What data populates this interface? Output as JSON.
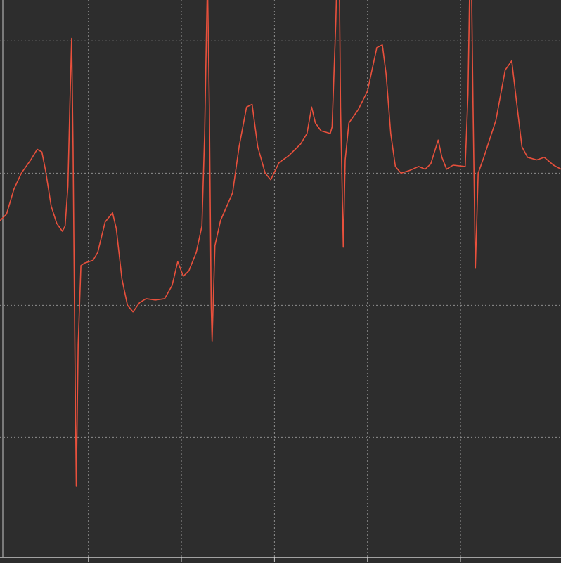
{
  "theme": {
    "background": "#2d2d2d",
    "grid": "#8f8f8f",
    "trace": "#e8503c",
    "axis": "#c8c8c8"
  },
  "chart_data": {
    "type": "line",
    "title": "",
    "xlabel": "",
    "ylabel": "",
    "grid": true,
    "legend": "none",
    "x_gridlines": [
      1,
      2,
      3,
      4,
      5
    ],
    "y_gridlines": [
      -2,
      -1,
      0,
      1
    ],
    "xlim": [
      0.05,
      6.08
    ],
    "ylim": [
      -2.95,
      1.31
    ],
    "series": [
      {
        "name": "",
        "points": [
          [
            0.05,
            -0.36
          ],
          [
            0.12,
            -0.31
          ],
          [
            0.2,
            -0.12
          ],
          [
            0.28,
            0.0
          ],
          [
            0.38,
            0.1
          ],
          [
            0.45,
            0.18
          ],
          [
            0.5,
            0.16
          ],
          [
            0.54,
            0.02
          ],
          [
            0.6,
            -0.25
          ],
          [
            0.66,
            -0.38
          ],
          [
            0.72,
            -0.44
          ],
          [
            0.75,
            -0.4
          ],
          [
            0.78,
            -0.1
          ],
          [
            0.8,
            0.5
          ],
          [
            0.82,
            1.02
          ],
          [
            0.835,
            0.2
          ],
          [
            0.85,
            -1.0
          ],
          [
            0.87,
            -2.37
          ],
          [
            0.89,
            -1.3
          ],
          [
            0.92,
            -0.7
          ],
          [
            0.96,
            -0.68
          ],
          [
            1.05,
            -0.66
          ],
          [
            1.1,
            -0.6
          ],
          [
            1.18,
            -0.37
          ],
          [
            1.26,
            -0.3
          ],
          [
            1.3,
            -0.42
          ],
          [
            1.36,
            -0.8
          ],
          [
            1.42,
            -1.0
          ],
          [
            1.48,
            -1.05
          ],
          [
            1.55,
            -0.98
          ],
          [
            1.62,
            -0.95
          ],
          [
            1.72,
            -0.96
          ],
          [
            1.82,
            -0.95
          ],
          [
            1.9,
            -0.85
          ],
          [
            1.96,
            -0.67
          ],
          [
            2.02,
            -0.78
          ],
          [
            2.08,
            -0.74
          ],
          [
            2.16,
            -0.6
          ],
          [
            2.22,
            -0.4
          ],
          [
            2.25,
            0.3
          ],
          [
            2.28,
            1.48
          ],
          [
            2.3,
            0.5
          ],
          [
            2.32,
            -1.0
          ],
          [
            2.33,
            -1.27
          ],
          [
            2.36,
            -0.55
          ],
          [
            2.42,
            -0.36
          ],
          [
            2.55,
            -0.15
          ],
          [
            2.62,
            0.2
          ],
          [
            2.7,
            0.5
          ],
          [
            2.76,
            0.52
          ],
          [
            2.82,
            0.2
          ],
          [
            2.9,
            0.0
          ],
          [
            2.96,
            -0.05
          ],
          [
            3.05,
            0.08
          ],
          [
            3.15,
            0.13
          ],
          [
            3.28,
            0.22
          ],
          [
            3.35,
            0.3
          ],
          [
            3.4,
            0.5
          ],
          [
            3.44,
            0.38
          ],
          [
            3.5,
            0.32
          ],
          [
            3.6,
            0.3
          ],
          [
            3.62,
            0.35
          ],
          [
            3.66,
            1.15
          ],
          [
            3.69,
            2.0
          ],
          [
            3.71,
            0.5
          ],
          [
            3.74,
            -0.56
          ],
          [
            3.76,
            0.1
          ],
          [
            3.8,
            0.38
          ],
          [
            3.9,
            0.48
          ],
          [
            4.0,
            0.62
          ],
          [
            4.1,
            0.95
          ],
          [
            4.16,
            0.97
          ],
          [
            4.2,
            0.75
          ],
          [
            4.25,
            0.3
          ],
          [
            4.3,
            0.05
          ],
          [
            4.36,
            0.0
          ],
          [
            4.45,
            0.02
          ],
          [
            4.55,
            0.05
          ],
          [
            4.62,
            0.03
          ],
          [
            4.68,
            0.07
          ],
          [
            4.76,
            0.25
          ],
          [
            4.8,
            0.12
          ],
          [
            4.85,
            0.03
          ],
          [
            4.92,
            0.06
          ],
          [
            5.05,
            0.05
          ],
          [
            5.08,
            0.6
          ],
          [
            5.11,
            1.9
          ],
          [
            5.135,
            0.5
          ],
          [
            5.16,
            -0.72
          ],
          [
            5.19,
            0.0
          ],
          [
            5.25,
            0.12
          ],
          [
            5.38,
            0.4
          ],
          [
            5.48,
            0.78
          ],
          [
            5.55,
            0.85
          ],
          [
            5.6,
            0.55
          ],
          [
            5.66,
            0.2
          ],
          [
            5.72,
            0.12
          ],
          [
            5.82,
            0.1
          ],
          [
            5.9,
            0.12
          ],
          [
            6.0,
            0.06
          ],
          [
            6.08,
            0.03
          ]
        ]
      }
    ]
  }
}
